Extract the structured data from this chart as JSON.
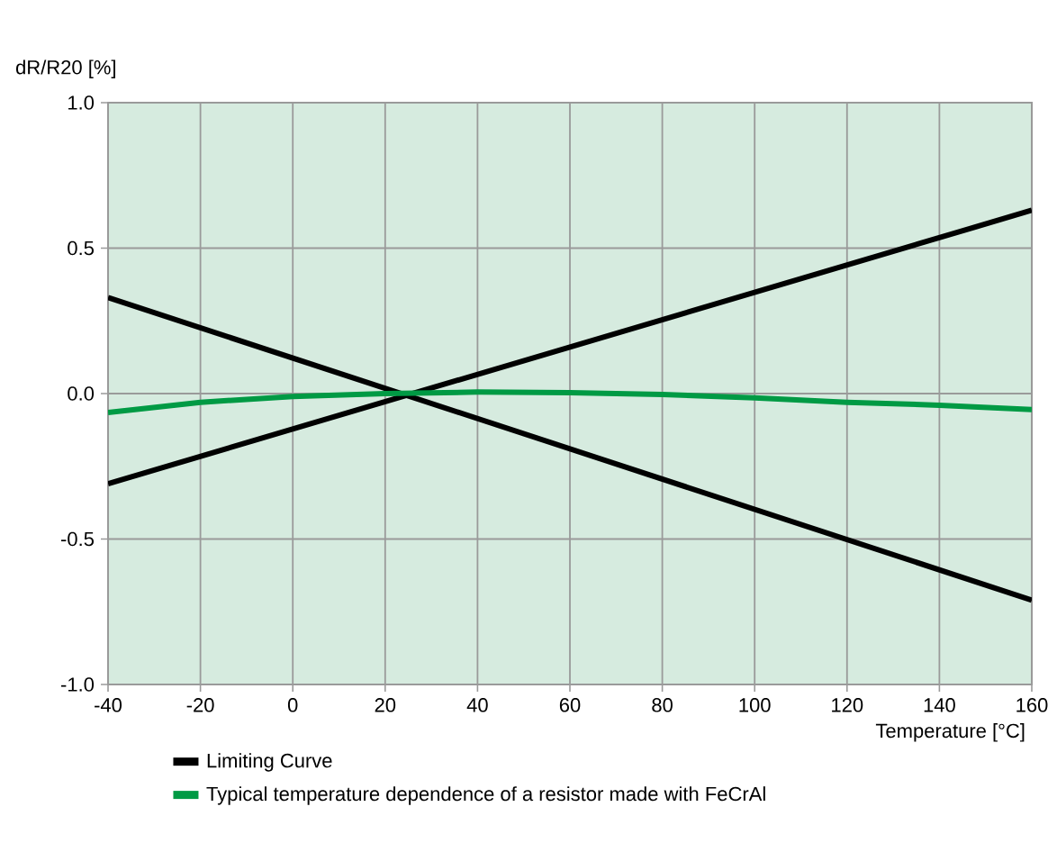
{
  "chart_data": {
    "type": "line",
    "xlabel": "Temperature [°C]",
    "ylabel": "dR/R20 [%]",
    "xlim": [
      -40,
      160
    ],
    "xticks": [
      -40,
      -20,
      0,
      20,
      40,
      60,
      80,
      100,
      120,
      140,
      160
    ],
    "ylim": [
      -1,
      1
    ],
    "yticks": [
      {
        "value": -1,
        "label": "-1.0"
      },
      {
        "value": -0.5,
        "label": "-0.5"
      },
      {
        "value": 0,
        "label": "0.0"
      },
      {
        "value": 0.5,
        "label": "0.5"
      },
      {
        "value": 1,
        "label": "1.0"
      }
    ],
    "grid": true,
    "legend": "bottom",
    "line_style": "solid",
    "series": [
      {
        "name": "Limiting Curve",
        "color": "#000000",
        "x": [
          -40,
          160
        ],
        "values": [
          -0.31,
          0.63
        ]
      },
      {
        "color": "#000000",
        "x": [
          -40,
          160
        ],
        "values": [
          0.33,
          -0.71
        ]
      },
      {
        "name": "Typical temperature dependence of a resistor made with FeCrAl",
        "color": "#009a44",
        "x": [
          -40,
          -20,
          0,
          20,
          40,
          60,
          80,
          100,
          120,
          140,
          160
        ],
        "values": [
          -0.065,
          -0.03,
          -0.01,
          0.0,
          0.005,
          0.003,
          -0.003,
          -0.015,
          -0.03,
          -0.04,
          -0.055
        ]
      }
    ]
  }
}
